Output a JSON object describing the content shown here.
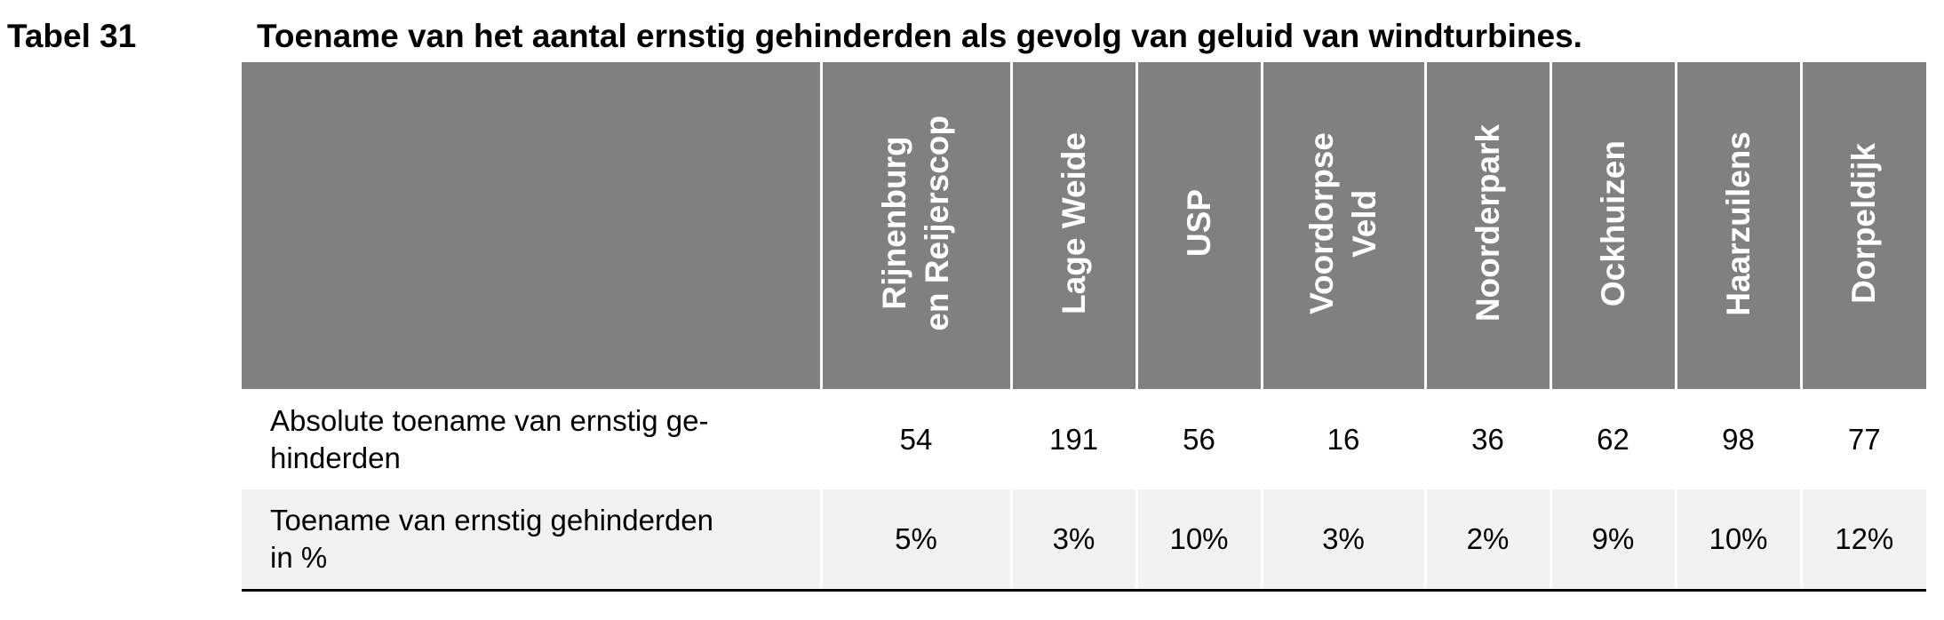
{
  "table": {
    "label": "Tabel 31",
    "title": "Toename van het aantal ernstig gehinderden als gevolg van geluid van windturbines.",
    "columns": [
      "Rijnenburg\nen Reijerscop",
      "Lage Weide",
      "USP",
      "Voordorpse\nVeld",
      "Noorderpark",
      "Ockhuizen",
      "Haarzuilens",
      "Dorpeldijk"
    ],
    "rows": [
      {
        "label": "Absolute toename van ernstig ge-\nhinderden",
        "values": [
          "54",
          "191",
          "56",
          "16",
          "36",
          "62",
          "98",
          "77"
        ]
      },
      {
        "label": "Toename van ernstig gehinderden\nin %",
        "values": [
          "5%",
          "3%",
          "10%",
          "3%",
          "2%",
          "9%",
          "10%",
          "12%"
        ]
      }
    ],
    "colors": {
      "header_bg": "#808080",
      "header_text": "#ffffff",
      "alt_row_bg": "#f2f2f2",
      "bottom_rule": "#000000"
    }
  }
}
